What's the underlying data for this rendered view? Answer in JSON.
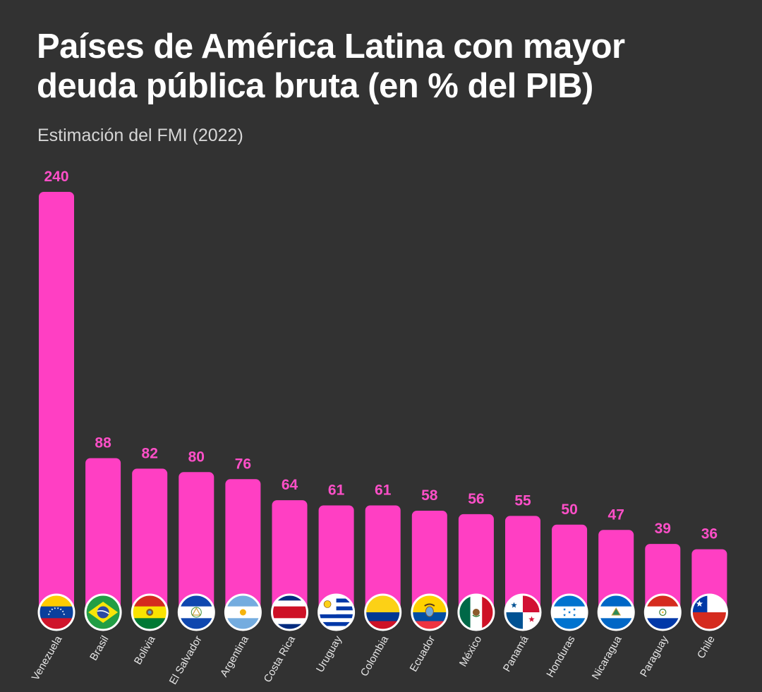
{
  "header": {
    "title_line1": "Países de América Latina con mayor",
    "title_line2": "deuda pública bruta (en % del PIB)",
    "subtitle": "Estimación del FMI (2022)"
  },
  "colors": {
    "background": "#323232",
    "bar": "#ff3fc3",
    "value_label": "#ff4fc8",
    "text": "#ffffff"
  },
  "chart_data": {
    "type": "bar",
    "title": "Países de América Latina con mayor deuda pública bruta (en % del PIB)",
    "subtitle": "Estimación del FMI (2022)",
    "xlabel": "",
    "ylabel": "",
    "ylim": [
      0,
      240
    ],
    "grid": false,
    "categories": [
      "Venezuela",
      "Brasil",
      "Bolivia",
      "El Salvador",
      "Argentina",
      "Costa Rica",
      "Uruguay",
      "Colombia",
      "Ecuador",
      "México",
      "Panamá",
      "Honduras",
      "Nicaragua",
      "Paraguay",
      "Chile"
    ],
    "values": [
      240,
      88,
      82,
      80,
      76,
      64,
      61,
      61,
      58,
      56,
      55,
      50,
      47,
      39,
      36
    ],
    "flag_icons": [
      "venezuela-flag-icon",
      "brazil-flag-icon",
      "bolivia-flag-icon",
      "el-salvador-flag-icon",
      "argentina-flag-icon",
      "costa-rica-flag-icon",
      "uruguay-flag-icon",
      "colombia-flag-icon",
      "ecuador-flag-icon",
      "mexico-flag-icon",
      "panama-flag-icon",
      "honduras-flag-icon",
      "nicaragua-flag-icon",
      "paraguay-flag-icon",
      "chile-flag-icon"
    ]
  }
}
